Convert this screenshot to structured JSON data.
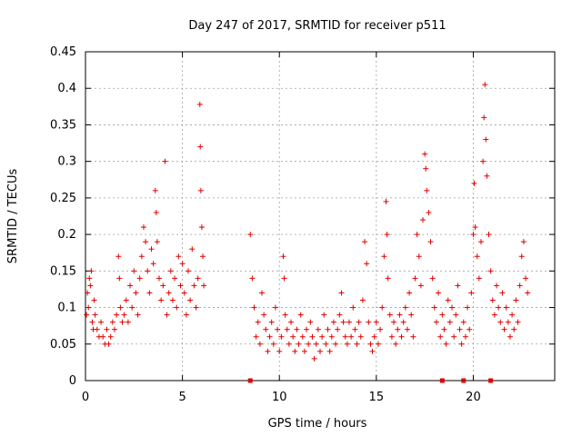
{
  "chart_data": {
    "type": "scatter",
    "title": "Day 247 of 2017, SRMTID for receiver p511",
    "xlabel": "GPS time / hours",
    "ylabel": "SRMTID / TECUs",
    "xlim": [
      0,
      24.2
    ],
    "ylim": [
      0,
      0.45
    ],
    "xticks": [
      0,
      5,
      10,
      15,
      20
    ],
    "xtick_labels": [
      "0",
      "5",
      "10",
      "15",
      "20"
    ],
    "yticks": [
      0,
      0.05,
      0.1,
      0.15,
      0.2,
      0.25,
      0.3,
      0.35,
      0.4,
      0.45
    ],
    "ytick_labels": [
      "0",
      "0.05",
      "0.1",
      "0.15",
      "0.2",
      "0.25",
      "0.3",
      "0.35",
      "0.4",
      "0.45"
    ],
    "grid": true,
    "series": [
      {
        "name": "SRMTID",
        "marker": "+",
        "color": "#e00000",
        "points": [
          [
            0.05,
            0.09
          ],
          [
            0.1,
            0.12
          ],
          [
            0.15,
            0.1
          ],
          [
            0.2,
            0.14
          ],
          [
            0.25,
            0.13
          ],
          [
            0.3,
            0.15
          ],
          [
            0.35,
            0.08
          ],
          [
            0.4,
            0.07
          ],
          [
            0.45,
            0.11
          ],
          [
            0.5,
            0.09
          ],
          [
            0.6,
            0.07
          ],
          [
            0.7,
            0.06
          ],
          [
            0.8,
            0.08
          ],
          [
            0.9,
            0.06
          ],
          [
            1.0,
            0.05
          ],
          [
            1.1,
            0.07
          ],
          [
            1.2,
            0.05
          ],
          [
            1.3,
            0.06
          ],
          [
            1.4,
            0.08
          ],
          [
            1.5,
            0.07
          ],
          [
            1.6,
            0.09
          ],
          [
            1.7,
            0.17
          ],
          [
            1.75,
            0.14
          ],
          [
            1.8,
            0.1
          ],
          [
            1.9,
            0.08
          ],
          [
            2.0,
            0.09
          ],
          [
            2.1,
            0.11
          ],
          [
            2.2,
            0.08
          ],
          [
            2.3,
            0.13
          ],
          [
            2.4,
            0.1
          ],
          [
            2.5,
            0.15
          ],
          [
            2.6,
            0.12
          ],
          [
            2.7,
            0.09
          ],
          [
            2.8,
            0.14
          ],
          [
            2.9,
            0.17
          ],
          [
            3.0,
            0.21
          ],
          [
            3.1,
            0.19
          ],
          [
            3.2,
            0.15
          ],
          [
            3.3,
            0.12
          ],
          [
            3.4,
            0.18
          ],
          [
            3.5,
            0.16
          ],
          [
            3.6,
            0.26
          ],
          [
            3.65,
            0.23
          ],
          [
            3.7,
            0.19
          ],
          [
            3.8,
            0.14
          ],
          [
            3.9,
            0.11
          ],
          [
            4.0,
            0.13
          ],
          [
            4.1,
            0.3
          ],
          [
            4.2,
            0.09
          ],
          [
            4.3,
            0.12
          ],
          [
            4.4,
            0.15
          ],
          [
            4.5,
            0.11
          ],
          [
            4.6,
            0.14
          ],
          [
            4.7,
            0.1
          ],
          [
            4.8,
            0.17
          ],
          [
            4.9,
            0.13
          ],
          [
            5.0,
            0.16
          ],
          [
            5.1,
            0.12
          ],
          [
            5.2,
            0.09
          ],
          [
            5.3,
            0.15
          ],
          [
            5.4,
            0.11
          ],
          [
            5.5,
            0.18
          ],
          [
            5.6,
            0.13
          ],
          [
            5.7,
            0.1
          ],
          [
            5.8,
            0.14
          ],
          [
            5.9,
            0.378
          ],
          [
            5.92,
            0.32
          ],
          [
            5.95,
            0.26
          ],
          [
            6.0,
            0.21
          ],
          [
            6.05,
            0.17
          ],
          [
            6.1,
            0.13
          ],
          [
            8.5,
            0.2
          ],
          [
            8.6,
            0.14
          ],
          [
            8.7,
            0.1
          ],
          [
            8.8,
            0.06
          ],
          [
            8.9,
            0.08
          ],
          [
            9.0,
            0.05
          ],
          [
            9.1,
            0.12
          ],
          [
            9.2,
            0.09
          ],
          [
            9.3,
            0.07
          ],
          [
            9.4,
            0.04
          ],
          [
            9.5,
            0.06
          ],
          [
            9.6,
            0.08
          ],
          [
            9.7,
            0.05
          ],
          [
            9.8,
            0.1
          ],
          [
            9.9,
            0.07
          ],
          [
            10.0,
            0.04
          ],
          [
            10.1,
            0.06
          ],
          [
            10.2,
            0.17
          ],
          [
            10.25,
            0.14
          ],
          [
            10.3,
            0.09
          ],
          [
            10.4,
            0.07
          ],
          [
            10.5,
            0.05
          ],
          [
            10.6,
            0.08
          ],
          [
            10.7,
            0.06
          ],
          [
            10.8,
            0.04
          ],
          [
            10.9,
            0.07
          ],
          [
            11.0,
            0.05
          ],
          [
            11.1,
            0.09
          ],
          [
            11.2,
            0.06
          ],
          [
            11.3,
            0.04
          ],
          [
            11.4,
            0.07
          ],
          [
            11.5,
            0.05
          ],
          [
            11.6,
            0.08
          ],
          [
            11.7,
            0.06
          ],
          [
            11.8,
            0.03
          ],
          [
            11.9,
            0.05
          ],
          [
            12.0,
            0.07
          ],
          [
            12.1,
            0.04
          ],
          [
            12.2,
            0.06
          ],
          [
            12.3,
            0.09
          ],
          [
            12.4,
            0.05
          ],
          [
            12.5,
            0.07
          ],
          [
            12.6,
            0.04
          ],
          [
            12.7,
            0.06
          ],
          [
            12.8,
            0.08
          ],
          [
            12.9,
            0.05
          ],
          [
            13.0,
            0.07
          ],
          [
            13.1,
            0.09
          ],
          [
            13.2,
            0.12
          ],
          [
            13.3,
            0.08
          ],
          [
            13.4,
            0.06
          ],
          [
            13.5,
            0.05
          ],
          [
            13.6,
            0.08
          ],
          [
            13.7,
            0.06
          ],
          [
            13.8,
            0.1
          ],
          [
            13.9,
            0.07
          ],
          [
            14.0,
            0.05
          ],
          [
            14.1,
            0.08
          ],
          [
            14.2,
            0.06
          ],
          [
            14.3,
            0.11
          ],
          [
            14.4,
            0.19
          ],
          [
            14.5,
            0.16
          ],
          [
            14.6,
            0.08
          ],
          [
            14.7,
            0.05
          ],
          [
            14.8,
            0.04
          ],
          [
            14.9,
            0.06
          ],
          [
            15.0,
            0.08
          ],
          [
            15.1,
            0.05
          ],
          [
            15.2,
            0.07
          ],
          [
            15.3,
            0.1
          ],
          [
            15.4,
            0.17
          ],
          [
            15.5,
            0.245
          ],
          [
            15.55,
            0.2
          ],
          [
            15.6,
            0.14
          ],
          [
            15.7,
            0.09
          ],
          [
            15.8,
            0.06
          ],
          [
            15.9,
            0.08
          ],
          [
            16.0,
            0.05
          ],
          [
            16.1,
            0.07
          ],
          [
            16.2,
            0.09
          ],
          [
            16.3,
            0.06
          ],
          [
            16.4,
            0.08
          ],
          [
            16.5,
            0.1
          ],
          [
            16.6,
            0.07
          ],
          [
            16.7,
            0.12
          ],
          [
            16.8,
            0.09
          ],
          [
            16.9,
            0.06
          ],
          [
            17.0,
            0.14
          ],
          [
            17.1,
            0.2
          ],
          [
            17.2,
            0.17
          ],
          [
            17.3,
            0.13
          ],
          [
            17.4,
            0.22
          ],
          [
            17.5,
            0.31
          ],
          [
            17.55,
            0.29
          ],
          [
            17.6,
            0.26
          ],
          [
            17.7,
            0.23
          ],
          [
            17.8,
            0.19
          ],
          [
            17.9,
            0.14
          ],
          [
            18.0,
            0.1
          ],
          [
            18.1,
            0.08
          ],
          [
            18.2,
            0.12
          ],
          [
            18.3,
            0.06
          ],
          [
            18.4,
            0.09
          ],
          [
            18.5,
            0.07
          ],
          [
            18.6,
            0.05
          ],
          [
            18.7,
            0.11
          ],
          [
            18.8,
            0.08
          ],
          [
            18.9,
            0.1
          ],
          [
            19.0,
            0.06
          ],
          [
            19.1,
            0.09
          ],
          [
            19.2,
            0.13
          ],
          [
            19.3,
            0.07
          ],
          [
            19.4,
            0.05
          ],
          [
            19.5,
            0.08
          ],
          [
            19.6,
            0.06
          ],
          [
            19.7,
            0.1
          ],
          [
            19.8,
            0.07
          ],
          [
            19.9,
            0.12
          ],
          [
            20.0,
            0.2
          ],
          [
            20.05,
            0.27
          ],
          [
            20.1,
            0.21
          ],
          [
            20.2,
            0.17
          ],
          [
            20.3,
            0.14
          ],
          [
            20.4,
            0.19
          ],
          [
            20.5,
            0.3
          ],
          [
            20.55,
            0.36
          ],
          [
            20.6,
            0.405
          ],
          [
            20.65,
            0.33
          ],
          [
            20.7,
            0.28
          ],
          [
            20.8,
            0.2
          ],
          [
            20.9,
            0.15
          ],
          [
            21.0,
            0.11
          ],
          [
            21.1,
            0.09
          ],
          [
            21.2,
            0.13
          ],
          [
            21.3,
            0.1
          ],
          [
            21.4,
            0.08
          ],
          [
            21.5,
            0.12
          ],
          [
            21.6,
            0.07
          ],
          [
            21.7,
            0.1
          ],
          [
            21.8,
            0.08
          ],
          [
            21.9,
            0.06
          ],
          [
            22.0,
            0.09
          ],
          [
            22.1,
            0.07
          ],
          [
            22.2,
            0.11
          ],
          [
            22.3,
            0.08
          ],
          [
            22.4,
            0.13
          ],
          [
            22.5,
            0.17
          ],
          [
            22.6,
            0.19
          ],
          [
            22.7,
            0.14
          ],
          [
            22.8,
            0.12
          ]
        ]
      },
      {
        "name": "zero-level markers",
        "marker": "square",
        "color": "#e00000",
        "points": [
          [
            8.5,
            0
          ],
          [
            18.4,
            0
          ],
          [
            19.5,
            0
          ],
          [
            20.9,
            0
          ]
        ]
      }
    ]
  }
}
